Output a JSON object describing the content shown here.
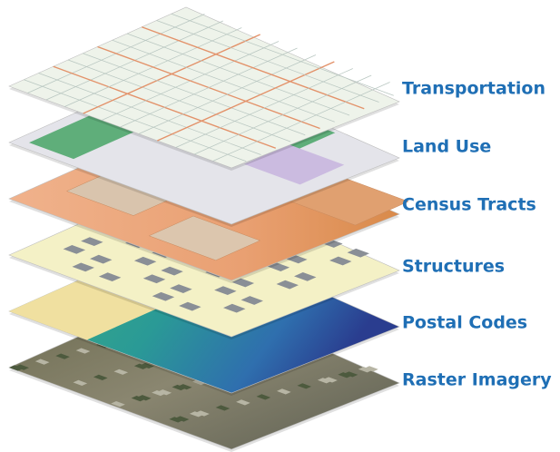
{
  "layers": [
    {
      "label": "Transportation"
    },
    {
      "label": "Land Use"
    },
    {
      "label": "Census Tracts"
    },
    {
      "label": "Structures"
    },
    {
      "label": "Postal Codes"
    },
    {
      "label": "Raster Imagery"
    }
  ]
}
